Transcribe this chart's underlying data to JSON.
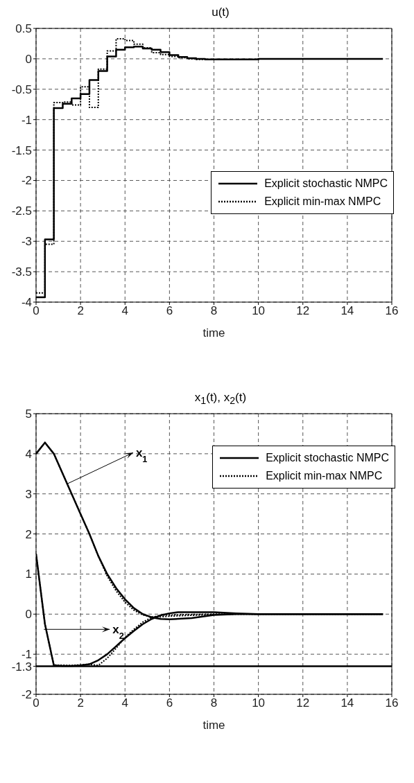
{
  "chart_data": [
    {
      "type": "step",
      "title": "u(t)",
      "xlabel": "time",
      "xlim": [
        0,
        16
      ],
      "xticks": [
        0,
        2,
        4,
        6,
        8,
        10,
        12,
        14,
        16
      ],
      "ylim": [
        -4,
        0.5
      ],
      "yticks": [
        -4,
        -3.5,
        -3,
        -2.5,
        -2,
        -1.5,
        -1,
        -0.5,
        0,
        0.5
      ],
      "grid": true,
      "legend": "right",
      "series": [
        {
          "name": "Explicit stochastic NMPC",
          "color": "#000000",
          "line_style": "solid",
          "x": [
            0,
            0.4,
            0.8,
            1.2,
            1.6,
            2.0,
            2.4,
            2.8,
            3.2,
            3.6,
            4.0,
            4.4,
            4.8,
            5.2,
            5.6,
            6.0,
            6.4,
            6.8,
            7.2,
            7.6,
            10,
            15.6
          ],
          "values": [
            -3.92,
            -2.97,
            -0.81,
            -0.74,
            -0.65,
            -0.58,
            -0.35,
            -0.2,
            0.04,
            0.15,
            0.19,
            0.2,
            0.17,
            0.15,
            0.11,
            0.06,
            0.03,
            0.01,
            0,
            -0.01,
            0,
            0
          ]
        },
        {
          "name": "Explicit min-max NMPC",
          "color": "#000000",
          "line_style": "dotted",
          "x": [
            0,
            0.4,
            0.8,
            1.2,
            1.6,
            2.0,
            2.4,
            2.8,
            3.2,
            3.6,
            4.0,
            4.4,
            4.8,
            5.2,
            5.6,
            6.0,
            6.4,
            6.8,
            7.2,
            10,
            15.6
          ],
          "values": [
            -3.85,
            -3.05,
            -0.72,
            -0.71,
            -0.76,
            -0.46,
            -0.8,
            -0.17,
            0.13,
            0.33,
            0.3,
            0.24,
            0.18,
            0.1,
            0.07,
            0.04,
            0.02,
            0,
            -0.01,
            0,
            0
          ]
        }
      ]
    },
    {
      "type": "line",
      "title": "x$_{1}$(t), x$_{2}$(t)",
      "xlabel": "time",
      "xlim": [
        0,
        16
      ],
      "xticks": [
        0,
        2,
        4,
        6,
        8,
        10,
        12,
        14,
        16
      ],
      "ylim": [
        -2,
        5
      ],
      "yticks": [
        -2,
        -1.3,
        -1,
        0,
        1,
        2,
        3,
        4,
        5
      ],
      "grid": true,
      "legend": "top right",
      "ref_lines": [
        {
          "axis": "y",
          "value": -1.3,
          "color": "#000000",
          "line_style": "solid"
        }
      ],
      "annotations": [
        {
          "text": "x$_{1}$",
          "x": 1.4,
          "y": 3.25
        },
        {
          "text": "x$_{2}$",
          "x": 0.35,
          "y": -0.38
        }
      ],
      "series": [
        {
          "name": "Explicit stochastic NMPC",
          "color": "#000000",
          "line_style": "solid",
          "x": [
            0,
            0.4,
            0.8,
            1.2,
            1.6,
            2.0,
            2.4,
            2.8,
            3.2,
            3.6,
            4.0,
            4.4,
            4.8,
            5.2,
            5.6,
            6.0,
            7,
            8,
            9,
            10,
            15.6
          ],
          "values": [
            4,
            4.28,
            4.0,
            3.5,
            3.0,
            2.5,
            2.0,
            1.45,
            1.0,
            0.65,
            0.37,
            0.15,
            0.0,
            -0.08,
            -0.12,
            -0.13,
            -0.1,
            -0.02,
            0,
            0,
            0
          ]
        },
        {
          "name": "Explicit min-max NMPC",
          "color": "#000000",
          "line_style": "dotted",
          "x": [
            0,
            0.4,
            0.8,
            1.2,
            1.6,
            2.0,
            2.4,
            2.8,
            3.2,
            3.6,
            4.0,
            4.4,
            4.8,
            5.2,
            5.6,
            6.0,
            7,
            8,
            9,
            10,
            15.6
          ],
          "values": [
            4,
            4.28,
            4.0,
            3.5,
            3.0,
            2.5,
            2.0,
            1.45,
            0.95,
            0.58,
            0.3,
            0.1,
            -0.02,
            -0.07,
            -0.07,
            -0.05,
            -0.03,
            -0.01,
            0,
            0,
            0
          ]
        },
        {
          "color": "#000000",
          "line_style": "solid",
          "x": [
            0,
            0.4,
            0.8,
            1.2,
            1.6,
            2.0,
            2.4,
            2.8,
            3.2,
            3.6,
            4.0,
            4.4,
            4.8,
            5.2,
            5.6,
            6.0,
            6.4,
            7,
            8,
            9,
            10,
            15.6
          ],
          "values": [
            1.5,
            -0.25,
            -1.28,
            -1.29,
            -1.29,
            -1.28,
            -1.25,
            -1.15,
            -1.0,
            -0.8,
            -0.6,
            -0.42,
            -0.25,
            -0.12,
            -0.03,
            0.02,
            0.05,
            0.05,
            0.05,
            0.02,
            0,
            0
          ]
        },
        {
          "color": "#000000",
          "line_style": "dotted",
          "x": [
            0,
            0.4,
            0.8,
            1.6,
            2.4,
            2.8,
            3.2,
            3.6,
            4.0,
            4.4,
            4.8,
            5.2,
            5.6,
            6.0,
            7,
            8,
            15.6
          ],
          "values": [
            1.5,
            -0.25,
            -1.27,
            -1.28,
            -1.25,
            -1.28,
            -1.1,
            -0.85,
            -0.58,
            -0.38,
            -0.2,
            -0.08,
            -0.03,
            -0.02,
            -0.01,
            0,
            0
          ]
        }
      ]
    }
  ]
}
